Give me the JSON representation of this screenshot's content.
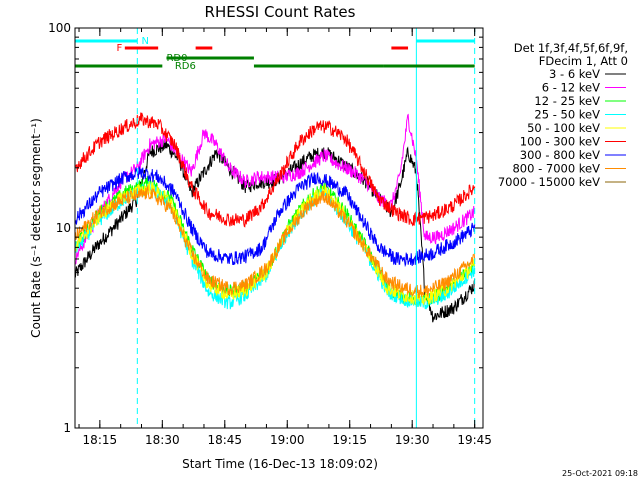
{
  "chart_data": {
    "type": "line",
    "title": "RHESSI Count Rates",
    "xlabel": "Start Time (16-Dec-13 18:09:02)",
    "ylabel": "Count Rate (s⁻¹ detector segment⁻¹)",
    "y_scale": "log",
    "ylim": [
      1,
      100
    ],
    "xlim": [
      "18:09:02",
      "19:47"
    ],
    "x_ticks": [
      "18:15",
      "18:30",
      "18:45",
      "19:00",
      "19:15",
      "19:30",
      "19:45"
    ],
    "y_ticks": [
      "1",
      "10",
      "100"
    ],
    "legend_header": [
      "Det 1f,3f,4f,5f,6f,9f,",
      "FDecim 1, Att 0"
    ],
    "legend_position": "right",
    "series": [
      {
        "name": "3 - 6 keV",
        "color": "#000000",
        "points": [
          [
            "18:09",
            5.8
          ],
          [
            "18:14",
            8
          ],
          [
            "18:20",
            11
          ],
          [
            "18:24",
            14
          ],
          [
            "18:27",
            24
          ],
          [
            "18:31",
            26
          ],
          [
            "18:34",
            22
          ],
          [
            "18:37",
            15
          ],
          [
            "18:40",
            19
          ],
          [
            "18:43",
            24
          ],
          [
            "18:46",
            20
          ],
          [
            "18:50",
            16
          ],
          [
            "18:53",
            17
          ],
          [
            "18:56",
            17
          ],
          [
            "18:59",
            18
          ],
          [
            "19:03",
            21
          ],
          [
            "19:06",
            23
          ],
          [
            "19:09",
            24
          ],
          [
            "19:12",
            22
          ],
          [
            "19:16",
            19
          ],
          [
            "19:19",
            17
          ],
          [
            "19:22",
            14
          ],
          [
            "19:25",
            12
          ],
          [
            "19:27",
            16
          ],
          [
            "19:29",
            24
          ],
          [
            "19:31",
            19
          ],
          [
            "19:33",
            5
          ],
          [
            "19:35",
            3.6
          ],
          [
            "19:40",
            4
          ],
          [
            "19:45",
            5.2
          ]
        ]
      },
      {
        "name": "6 - 12 keV",
        "color": "#ff00ff",
        "points": [
          [
            "18:09",
            7
          ],
          [
            "18:14",
            11
          ],
          [
            "18:20",
            17
          ],
          [
            "18:24",
            20
          ],
          [
            "18:27",
            26
          ],
          [
            "18:31",
            28
          ],
          [
            "18:34",
            23
          ],
          [
            "18:37",
            19
          ],
          [
            "18:40",
            30
          ],
          [
            "18:43",
            26
          ],
          [
            "18:46",
            20
          ],
          [
            "18:50",
            17
          ],
          [
            "18:53",
            18
          ],
          [
            "18:56",
            18
          ],
          [
            "18:59",
            18
          ],
          [
            "19:03",
            19
          ],
          [
            "19:06",
            21
          ],
          [
            "19:09",
            23
          ],
          [
            "19:12",
            21
          ],
          [
            "19:16",
            19
          ],
          [
            "19:19",
            17
          ],
          [
            "19:22",
            14
          ],
          [
            "19:25",
            13
          ],
          [
            "19:27",
            18
          ],
          [
            "19:29",
            36
          ],
          [
            "19:31",
            22
          ],
          [
            "19:33",
            9
          ],
          [
            "19:36",
            9
          ],
          [
            "19:40",
            10
          ],
          [
            "19:45",
            12
          ]
        ]
      },
      {
        "name": "12 - 25 keV",
        "color": "#00ff00",
        "points": [
          [
            "18:09",
            8
          ],
          [
            "18:15",
            12
          ],
          [
            "18:21",
            15
          ],
          [
            "18:27",
            17
          ],
          [
            "18:32",
            14
          ],
          [
            "18:37",
            8
          ],
          [
            "18:41",
            5.5
          ],
          [
            "18:46",
            4.8
          ],
          [
            "18:50",
            5
          ],
          [
            "18:55",
            6
          ],
          [
            "19:00",
            10
          ],
          [
            "19:05",
            14
          ],
          [
            "19:09",
            16
          ],
          [
            "19:14",
            12
          ],
          [
            "19:19",
            8
          ],
          [
            "19:24",
            5
          ],
          [
            "19:28",
            4.5
          ],
          [
            "19:33",
            4.3
          ],
          [
            "19:38",
            4.8
          ],
          [
            "19:45",
            6.5
          ]
        ]
      },
      {
        "name": "25 - 50 keV",
        "color": "#00ffff",
        "points": [
          [
            "18:09",
            7.8
          ],
          [
            "18:15",
            11
          ],
          [
            "18:21",
            14
          ],
          [
            "18:27",
            16
          ],
          [
            "18:32",
            13
          ],
          [
            "18:37",
            7
          ],
          [
            "18:41",
            4.8
          ],
          [
            "18:46",
            4.2
          ],
          [
            "18:50",
            4.6
          ],
          [
            "18:55",
            5.8
          ],
          [
            "19:00",
            9.5
          ],
          [
            "19:05",
            13
          ],
          [
            "19:09",
            15
          ],
          [
            "19:14",
            11
          ],
          [
            "19:19",
            7.5
          ],
          [
            "19:24",
            4.8
          ],
          [
            "19:28",
            4.4
          ],
          [
            "19:33",
            4.2
          ],
          [
            "19:38",
            4.6
          ],
          [
            "19:45",
            6.2
          ]
        ]
      },
      {
        "name": "50 - 100 keV",
        "color": "#ffff00",
        "points": [
          [
            "18:09",
            8
          ],
          [
            "18:15",
            11.5
          ],
          [
            "18:21",
            14.5
          ],
          [
            "18:27",
            16
          ],
          [
            "18:32",
            13.5
          ],
          [
            "18:37",
            7.5
          ],
          [
            "18:41",
            5.2
          ],
          [
            "18:46",
            4.6
          ],
          [
            "18:50",
            4.9
          ],
          [
            "18:55",
            6
          ],
          [
            "19:00",
            9.8
          ],
          [
            "19:05",
            13.5
          ],
          [
            "19:09",
            15.5
          ],
          [
            "19:14",
            11.5
          ],
          [
            "19:19",
            7.8
          ],
          [
            "19:24",
            5
          ],
          [
            "19:28",
            4.6
          ],
          [
            "19:33",
            4.4
          ],
          [
            "19:38",
            4.9
          ],
          [
            "19:45",
            6.5
          ]
        ]
      },
      {
        "name": "100 - 300 keV",
        "color": "#ff0000",
        "points": [
          [
            "18:09",
            20
          ],
          [
            "18:15",
            27
          ],
          [
            "18:21",
            32
          ],
          [
            "18:25",
            35
          ],
          [
            "18:29",
            33
          ],
          [
            "18:33",
            26
          ],
          [
            "18:37",
            16
          ],
          [
            "18:41",
            12
          ],
          [
            "18:46",
            11
          ],
          [
            "18:50",
            11
          ],
          [
            "18:54",
            13
          ],
          [
            "18:58",
            18
          ],
          [
            "19:03",
            27
          ],
          [
            "19:07",
            32
          ],
          [
            "19:10",
            32
          ],
          [
            "19:14",
            28
          ],
          [
            "19:18",
            20
          ],
          [
            "19:22",
            14
          ],
          [
            "19:26",
            12
          ],
          [
            "19:30",
            11
          ],
          [
            "19:35",
            11.5
          ],
          [
            "19:40",
            13
          ],
          [
            "19:45",
            16
          ]
        ]
      },
      {
        "name": "300 - 800 keV",
        "color": "#0000ff",
        "points": [
          [
            "18:09",
            11
          ],
          [
            "18:15",
            15
          ],
          [
            "18:21",
            18
          ],
          [
            "18:25",
            19
          ],
          [
            "18:29",
            18
          ],
          [
            "18:33",
            15
          ],
          [
            "18:37",
            10
          ],
          [
            "18:41",
            7.5
          ],
          [
            "18:46",
            7
          ],
          [
            "18:50",
            7.2
          ],
          [
            "18:54",
            8
          ],
          [
            "18:58",
            12
          ],
          [
            "19:03",
            16
          ],
          [
            "19:07",
            18
          ],
          [
            "19:10",
            17
          ],
          [
            "19:14",
            15
          ],
          [
            "19:18",
            11
          ],
          [
            "19:22",
            8
          ],
          [
            "19:26",
            7
          ],
          [
            "19:30",
            7
          ],
          [
            "19:35",
            7.5
          ],
          [
            "19:40",
            8.5
          ],
          [
            "19:45",
            10
          ]
        ]
      },
      {
        "name": "800 - 7000 keV",
        "color": "#ff8c00",
        "points": [
          [
            "18:09",
            9
          ],
          [
            "18:15",
            12
          ],
          [
            "18:21",
            14
          ],
          [
            "18:27",
            15
          ],
          [
            "18:32",
            12.5
          ],
          [
            "18:37",
            7.5
          ],
          [
            "18:41",
            5.5
          ],
          [
            "18:46",
            5
          ],
          [
            "18:50",
            5.2
          ],
          [
            "18:55",
            6.3
          ],
          [
            "19:00",
            9.5
          ],
          [
            "19:05",
            13
          ],
          [
            "19:09",
            14.5
          ],
          [
            "19:14",
            11
          ],
          [
            "19:19",
            7.8
          ],
          [
            "19:24",
            5.5
          ],
          [
            "19:28",
            5
          ],
          [
            "19:33",
            4.8
          ],
          [
            "19:38",
            5.3
          ],
          [
            "19:45",
            7
          ]
        ]
      },
      {
        "name": "7000 - 15000 keV",
        "color": "#8b6508",
        "points": []
      }
    ],
    "flags": [
      {
        "label": "F",
        "color": "#ff0000",
        "segments": [
          [
            "18:21",
            "18:29"
          ],
          [
            "18:38",
            "18:42"
          ],
          [
            "19:25",
            "19:29"
          ]
        ]
      },
      {
        "label": "N",
        "color": "#00ffff",
        "segments": [
          [
            "18:09",
            "18:24"
          ],
          [
            "19:31",
            "19:45"
          ]
        ]
      },
      {
        "label": "RD0",
        "color": "#008000",
        "segments": [
          [
            "18:31",
            "18:52"
          ]
        ]
      },
      {
        "label": "RD6",
        "color": "#008000",
        "segments": [
          [
            "18:09",
            "18:30"
          ],
          [
            "18:52",
            "19:23"
          ],
          [
            "19:23",
            "19:45"
          ]
        ]
      }
    ],
    "markers": [
      {
        "time": "18:09:02",
        "color": "#00ffff",
        "style": "solid"
      },
      {
        "time": "18:24",
        "color": "#00ffff",
        "style": "dashed"
      },
      {
        "time": "19:31",
        "color": "#00ffff",
        "style": "solid"
      },
      {
        "time": "19:45",
        "color": "#00ffff",
        "style": "dashed"
      }
    ]
  },
  "timestamp": "25-Oct-2021 09:18"
}
